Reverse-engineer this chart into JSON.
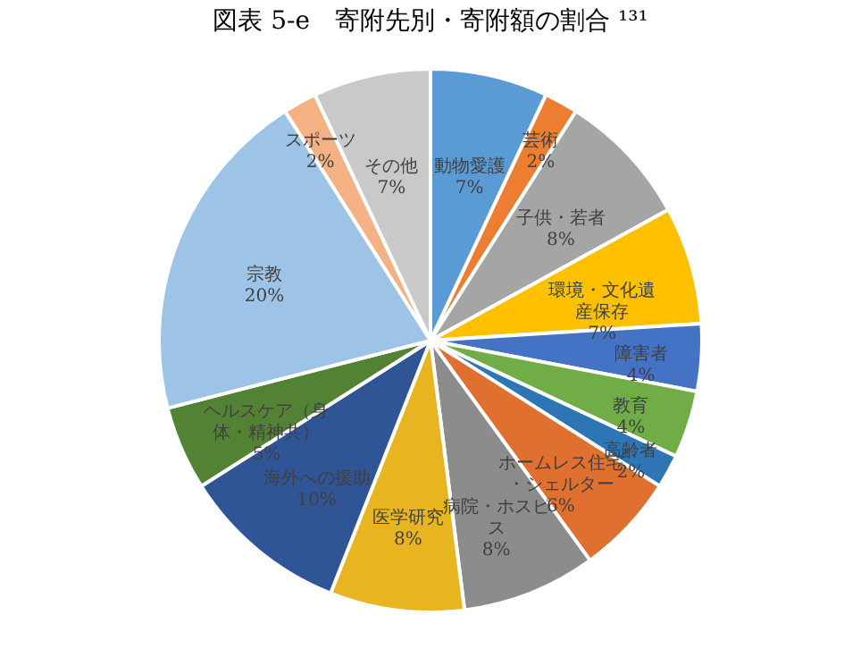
{
  "chart_data": {
    "type": "pie",
    "title": "図表 5-e　寄附先別・寄附額の割合 ¹³¹",
    "categories": [
      "動物愛護",
      "芸術",
      "子供・若者",
      "環境・文化遺産保存",
      "障害者",
      "教育",
      "高齢者",
      "ホームレス住宅・シェルター",
      "病院・ホスピス",
      "医学研究",
      "海外への援助",
      "ヘルスケア（身体・精神共）",
      "宗教",
      "スポーツ",
      "その他"
    ],
    "values": [
      7,
      2,
      8,
      7,
      4,
      4,
      2,
      6,
      8,
      8,
      10,
      5,
      20,
      2,
      7
    ],
    "value_labels": [
      "7%",
      "2%",
      "8%",
      "7%",
      "4%",
      "4%",
      "2%",
      "6%",
      "8%",
      "8%",
      "10%",
      "5%",
      "20%",
      "2%",
      "7%"
    ],
    "colors": [
      "#5b9bd5",
      "#ed7d31",
      "#a5a5a5",
      "#ffc000",
      "#4472c4",
      "#70ad47",
      "#2e75b6",
      "#e07030",
      "#8c8c8c",
      "#e8b420",
      "#2f5597",
      "#548235",
      "#9dc3e6",
      "#f4b183",
      "#c9c9c9"
    ],
    "legend": false
  }
}
